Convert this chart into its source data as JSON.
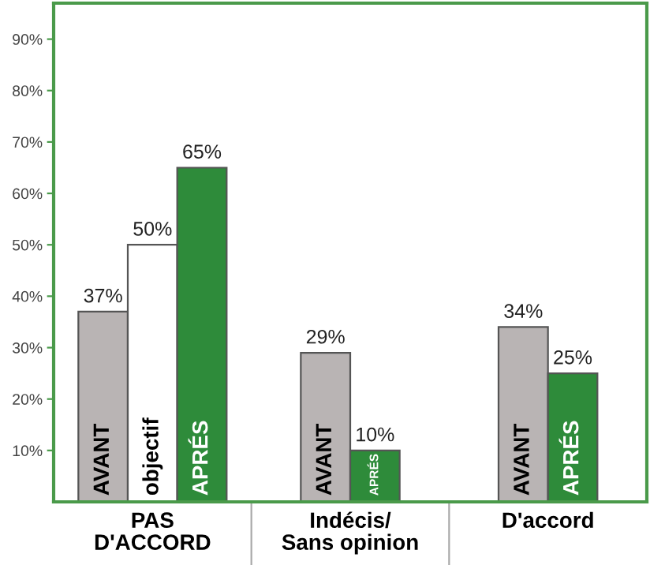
{
  "chart_data": {
    "type": "bar",
    "categories": [
      "PAS\nD'ACCORD",
      "Indécis/\nSans opinion",
      "D'accord"
    ],
    "series": [
      {
        "name": "AVANT",
        "color": "#b9b4b4",
        "values": [
          37,
          29,
          34
        ],
        "value_labels": [
          "37%",
          "29%",
          "34%"
        ]
      },
      {
        "name": "objectif",
        "color": "#ffffff",
        "values": [
          50,
          null,
          null
        ],
        "value_labels": [
          "50%",
          null,
          null
        ]
      },
      {
        "name": "APRÉS",
        "color": "#2e8b3a",
        "values": [
          65,
          10,
          25
        ],
        "value_labels": [
          "65%",
          "10%",
          "25%"
        ]
      }
    ],
    "ylim": [
      0,
      97
    ],
    "yticks": [
      {
        "value": 10,
        "label": "10%"
      },
      {
        "value": 20,
        "label": "20%"
      },
      {
        "value": 30,
        "label": "30%"
      },
      {
        "value": 40,
        "label": "40%"
      },
      {
        "value": 50,
        "label": "50%"
      },
      {
        "value": 60,
        "label": "60%"
      },
      {
        "value": 70,
        "label": "70%"
      },
      {
        "value": 80,
        "label": "80%"
      },
      {
        "value": 90,
        "label": "90%"
      }
    ],
    "grid": false,
    "legend": false
  }
}
